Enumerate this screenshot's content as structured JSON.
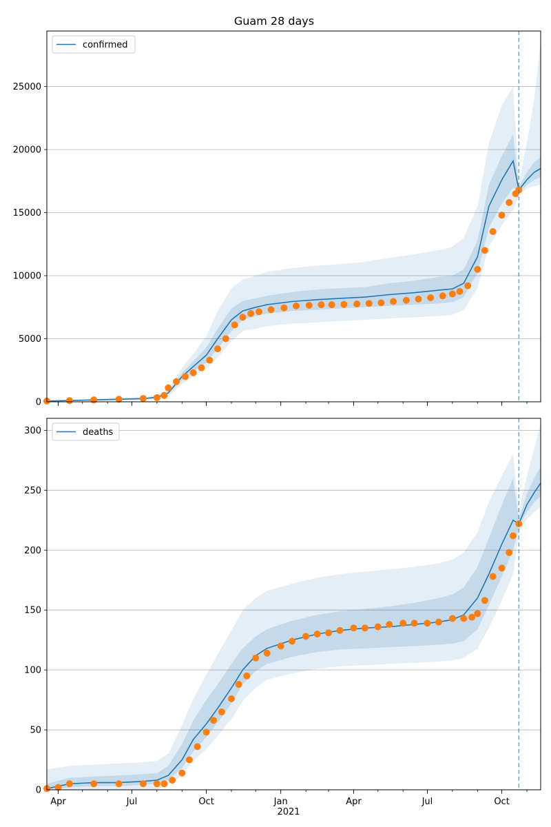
{
  "title": "Guam 28 days",
  "colors": {
    "model": "#1f77b4",
    "observed": "#ff7f0e",
    "band": "#1f77b4",
    "grid": "#b0b0b0"
  },
  "x_axis": {
    "ticks": [
      "Apr",
      "Jul",
      "Oct",
      "Jan",
      "Apr",
      "Jul",
      "Oct"
    ],
    "tick_positions_months": [
      0.5,
      3.5,
      6.5,
      9.5,
      12.5,
      15.5,
      18.5
    ],
    "year_label": "2021",
    "start": "2020-03-18",
    "end": "2021-11-18"
  },
  "chart_data": [
    {
      "type": "line",
      "legend": "confirmed",
      "legend_position": "top-left",
      "grid": true,
      "ylim": [
        0,
        29400
      ],
      "yticks": [
        "0",
        "5000",
        "10000",
        "15000",
        "20000",
        "25000"
      ],
      "ytick_values": [
        0,
        5000,
        10000,
        15000,
        20000,
        25000
      ],
      "forecast_start": "2021-10-22",
      "model_x": [
        "2020-03-18",
        "2020-04-15",
        "2020-05-15",
        "2020-06-15",
        "2020-07-15",
        "2020-08-01",
        "2020-08-15",
        "2020-09-01",
        "2020-09-15",
        "2020-10-01",
        "2020-10-15",
        "2020-11-01",
        "2020-11-15",
        "2020-12-01",
        "2020-12-15",
        "2021-01-15",
        "2021-02-15",
        "2021-03-15",
        "2021-04-15",
        "2021-05-15",
        "2021-06-15",
        "2021-07-15",
        "2021-08-01",
        "2021-08-15",
        "2021-09-01",
        "2021-09-15",
        "2021-10-01",
        "2021-10-15",
        "2021-10-22",
        "2021-11-01",
        "2021-11-10",
        "2021-11-18"
      ],
      "model_y": [
        60,
        100,
        150,
        200,
        250,
        350,
        700,
        2000,
        2800,
        3700,
        5000,
        6500,
        7200,
        7500,
        7700,
        7950,
        8100,
        8200,
        8300,
        8500,
        8650,
        8850,
        8950,
        9400,
        11500,
        15500,
        17600,
        19100,
        16800,
        17600,
        18200,
        18500
      ],
      "band_inner": [
        [
          50,
          70
        ],
        [
          80,
          120
        ],
        [
          120,
          180
        ],
        [
          160,
          240
        ],
        [
          200,
          300
        ],
        [
          280,
          420
        ],
        [
          600,
          800
        ],
        [
          1700,
          2300
        ],
        [
          2400,
          3200
        ],
        [
          3100,
          4300
        ],
        [
          4200,
          5800
        ],
        [
          5600,
          7400
        ],
        [
          6500,
          8000
        ],
        [
          6800,
          8200
        ],
        [
          7000,
          8400
        ],
        [
          7200,
          8700
        ],
        [
          7300,
          8900
        ],
        [
          7400,
          9000
        ],
        [
          7500,
          9100
        ],
        [
          7600,
          9400
        ],
        [
          7700,
          9600
        ],
        [
          7800,
          9900
        ],
        [
          7900,
          10000
        ],
        [
          8300,
          10500
        ],
        [
          10200,
          12800
        ],
        [
          13800,
          17200
        ],
        [
          15700,
          19500
        ],
        [
          17000,
          21200
        ],
        [
          16600,
          17000
        ],
        [
          17200,
          18200
        ],
        [
          17600,
          19000
        ],
        [
          17800,
          19400
        ]
      ],
      "band_outer": [
        [
          30,
          100
        ],
        [
          50,
          160
        ],
        [
          80,
          240
        ],
        [
          110,
          320
        ],
        [
          150,
          400
        ],
        [
          220,
          550
        ],
        [
          450,
          1000
        ],
        [
          1400,
          2700
        ],
        [
          2000,
          3800
        ],
        [
          2600,
          5200
        ],
        [
          3500,
          7200
        ],
        [
          4800,
          9000
        ],
        [
          5600,
          9700
        ],
        [
          5800,
          10000
        ],
        [
          6000,
          10300
        ],
        [
          6200,
          10600
        ],
        [
          6300,
          10800
        ],
        [
          6400,
          10900
        ],
        [
          6500,
          11100
        ],
        [
          6600,
          11400
        ],
        [
          6700,
          11700
        ],
        [
          6800,
          12000
        ],
        [
          6900,
          12300
        ],
        [
          7300,
          13000
        ],
        [
          9000,
          15500
        ],
        [
          12300,
          20500
        ],
        [
          14000,
          23500
        ],
        [
          15200,
          25000
        ],
        [
          16400,
          17300
        ],
        [
          16900,
          20500
        ],
        [
          17100,
          24000
        ],
        [
          17200,
          28500
        ]
      ],
      "observed_x": [
        "2020-03-18",
        "2020-04-15",
        "2020-05-15",
        "2020-06-15",
        "2020-07-15",
        "2020-08-01",
        "2020-08-10",
        "2020-08-15",
        "2020-08-25",
        "2020-09-05",
        "2020-09-15",
        "2020-09-25",
        "2020-10-05",
        "2020-10-15",
        "2020-10-25",
        "2020-11-05",
        "2020-11-15",
        "2020-11-25",
        "2020-12-05",
        "2020-12-20",
        "2021-01-05",
        "2021-01-20",
        "2021-02-05",
        "2021-02-20",
        "2021-03-05",
        "2021-03-20",
        "2021-04-05",
        "2021-04-20",
        "2021-05-05",
        "2021-05-20",
        "2021-06-05",
        "2021-06-20",
        "2021-07-05",
        "2021-07-20",
        "2021-08-01",
        "2021-08-10",
        "2021-08-20",
        "2021-09-01",
        "2021-09-10",
        "2021-09-20",
        "2021-10-01",
        "2021-10-10",
        "2021-10-18",
        "2021-10-22"
      ],
      "observed_y": [
        60,
        100,
        150,
        200,
        260,
        330,
        500,
        1100,
        1600,
        2000,
        2300,
        2700,
        3300,
        4200,
        5000,
        6100,
        6700,
        7000,
        7150,
        7300,
        7450,
        7600,
        7650,
        7700,
        7700,
        7720,
        7760,
        7800,
        7850,
        7950,
        8050,
        8150,
        8250,
        8400,
        8550,
        8750,
        9200,
        10500,
        12000,
        13500,
        14800,
        15800,
        16500,
        16800
      ]
    },
    {
      "type": "line",
      "legend": "deaths",
      "legend_position": "top-left",
      "grid": true,
      "ylim": [
        0,
        310
      ],
      "yticks": [
        "0",
        "50",
        "100",
        "150",
        "200",
        "250",
        "300"
      ],
      "ytick_values": [
        0,
        50,
        100,
        150,
        200,
        250,
        300
      ],
      "forecast_start": "2021-10-22",
      "model_x": [
        "2020-03-18",
        "2020-04-15",
        "2020-05-15",
        "2020-06-15",
        "2020-07-15",
        "2020-08-01",
        "2020-08-15",
        "2020-09-01",
        "2020-09-15",
        "2020-10-01",
        "2020-10-15",
        "2020-11-01",
        "2020-11-15",
        "2020-12-01",
        "2020-12-15",
        "2021-01-15",
        "2021-02-15",
        "2021-03-15",
        "2021-04-15",
        "2021-05-15",
        "2021-06-15",
        "2021-07-15",
        "2021-08-01",
        "2021-08-15",
        "2021-09-01",
        "2021-09-15",
        "2021-10-01",
        "2021-10-15",
        "2021-10-22",
        "2021-11-01",
        "2021-11-10",
        "2021-11-18"
      ],
      "model_y": [
        1,
        5,
        6,
        6,
        7,
        8,
        12,
        25,
        42,
        55,
        68,
        85,
        100,
        112,
        118,
        125,
        130,
        133,
        135,
        136,
        138,
        140,
        142,
        146,
        160,
        180,
        205,
        225,
        222,
        238,
        248,
        256
      ],
      "band_inner": [
        [
          0,
          5
        ],
        [
          2,
          10
        ],
        [
          3,
          11
        ],
        [
          3,
          12
        ],
        [
          4,
          13
        ],
        [
          5,
          14
        ],
        [
          8,
          20
        ],
        [
          18,
          38
        ],
        [
          32,
          58
        ],
        [
          44,
          75
        ],
        [
          56,
          88
        ],
        [
          72,
          105
        ],
        [
          88,
          118
        ],
        [
          99,
          128
        ],
        [
          105,
          134
        ],
        [
          111,
          141
        ],
        [
          115,
          146
        ],
        [
          117,
          149
        ],
        [
          118,
          151
        ],
        [
          119,
          153
        ],
        [
          120,
          156
        ],
        [
          121,
          160
        ],
        [
          122,
          163
        ],
        [
          124,
          169
        ],
        [
          134,
          186
        ],
        [
          154,
          210
        ],
        [
          178,
          238
        ],
        [
          200,
          260
        ],
        [
          219,
          226
        ],
        [
          232,
          247
        ],
        [
          240,
          260
        ],
        [
          245,
          270
        ]
      ],
      "band_outer": [
        [
          0,
          17
        ],
        [
          0,
          20
        ],
        [
          0,
          21
        ],
        [
          0,
          22
        ],
        [
          0,
          23
        ],
        [
          0,
          24
        ],
        [
          4,
          30
        ],
        [
          12,
          54
        ],
        [
          24,
          76
        ],
        [
          34,
          96
        ],
        [
          45,
          113
        ],
        [
          59,
          133
        ],
        [
          74,
          150
        ],
        [
          85,
          160
        ],
        [
          92,
          166
        ],
        [
          97,
          172
        ],
        [
          101,
          177
        ],
        [
          103,
          180
        ],
        [
          104,
          182
        ],
        [
          105,
          184
        ],
        [
          106,
          186
        ],
        [
          107,
          189
        ],
        [
          108,
          192
        ],
        [
          110,
          198
        ],
        [
          118,
          215
        ],
        [
          135,
          240
        ],
        [
          158,
          262
        ],
        [
          180,
          280
        ],
        [
          215,
          232
        ],
        [
          226,
          262
        ],
        [
          232,
          285
        ],
        [
          236,
          305
        ]
      ],
      "observed_x": [
        "2020-03-18",
        "2020-04-01",
        "2020-04-15",
        "2020-05-15",
        "2020-06-15",
        "2020-07-15",
        "2020-08-01",
        "2020-08-10",
        "2020-08-20",
        "2020-09-01",
        "2020-09-10",
        "2020-09-20",
        "2020-10-01",
        "2020-10-10",
        "2020-10-20",
        "2020-11-01",
        "2020-11-10",
        "2020-11-20",
        "2020-12-01",
        "2020-12-15",
        "2021-01-01",
        "2021-01-15",
        "2021-02-01",
        "2021-02-15",
        "2021-03-01",
        "2021-03-15",
        "2021-04-01",
        "2021-04-15",
        "2021-05-01",
        "2021-05-15",
        "2021-06-01",
        "2021-06-15",
        "2021-07-01",
        "2021-07-15",
        "2021-08-01",
        "2021-08-15",
        "2021-08-25",
        "2021-09-01",
        "2021-09-10",
        "2021-09-20",
        "2021-10-01",
        "2021-10-10",
        "2021-10-15",
        "2021-10-22"
      ],
      "observed_y": [
        1,
        2,
        5,
        5,
        5,
        5,
        5,
        5,
        8,
        14,
        25,
        36,
        48,
        58,
        65,
        76,
        88,
        95,
        110,
        114,
        120,
        124,
        128,
        130,
        131,
        133,
        135,
        135,
        136,
        138,
        139,
        139,
        139,
        140,
        143,
        143,
        144,
        147,
        158,
        178,
        185,
        198,
        212,
        222
      ]
    }
  ]
}
